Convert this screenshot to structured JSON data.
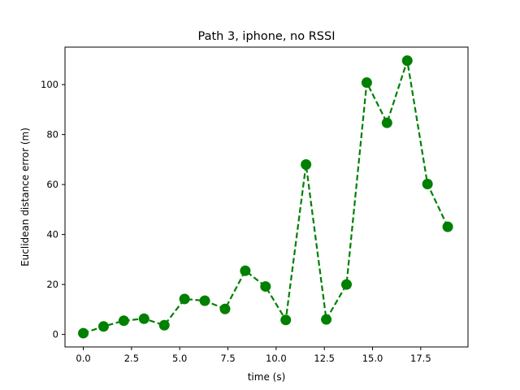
{
  "chart_data": {
    "type": "line",
    "title": "Path 3, iphone, no RSSI",
    "xlabel": "time (s)",
    "ylabel": "Euclidean distance error (m)",
    "xlim": [
      -0.95,
      19.95
    ],
    "ylim": [
      -5,
      115
    ],
    "xticks": [
      0.0,
      2.5,
      5.0,
      7.5,
      10.0,
      12.5,
      15.0,
      17.5
    ],
    "xtick_labels": [
      "0.0",
      "2.5",
      "5.0",
      "7.5",
      "10.0",
      "12.5",
      "15.0",
      "17.5"
    ],
    "yticks": [
      0,
      20,
      40,
      60,
      80,
      100
    ],
    "ytick_labels": [
      "0",
      "20",
      "40",
      "60",
      "80",
      "100"
    ],
    "grid": false,
    "series": [
      {
        "color": "#008000",
        "line_style": "dashed",
        "marker": "circle",
        "x": [
          0.0,
          1.05,
          2.1,
          3.15,
          4.2,
          5.25,
          6.3,
          7.35,
          8.4,
          9.45,
          10.5,
          11.55,
          12.6,
          13.65,
          14.7,
          15.75,
          16.8,
          17.85,
          18.9
        ],
        "values": [
          0.5,
          3.2,
          5.5,
          6.3,
          3.7,
          14.2,
          13.5,
          10.2,
          25.5,
          19.2,
          5.8,
          68.0,
          6.0,
          20.0,
          100.8,
          84.7,
          109.6,
          60.2,
          43.1
        ]
      }
    ]
  }
}
